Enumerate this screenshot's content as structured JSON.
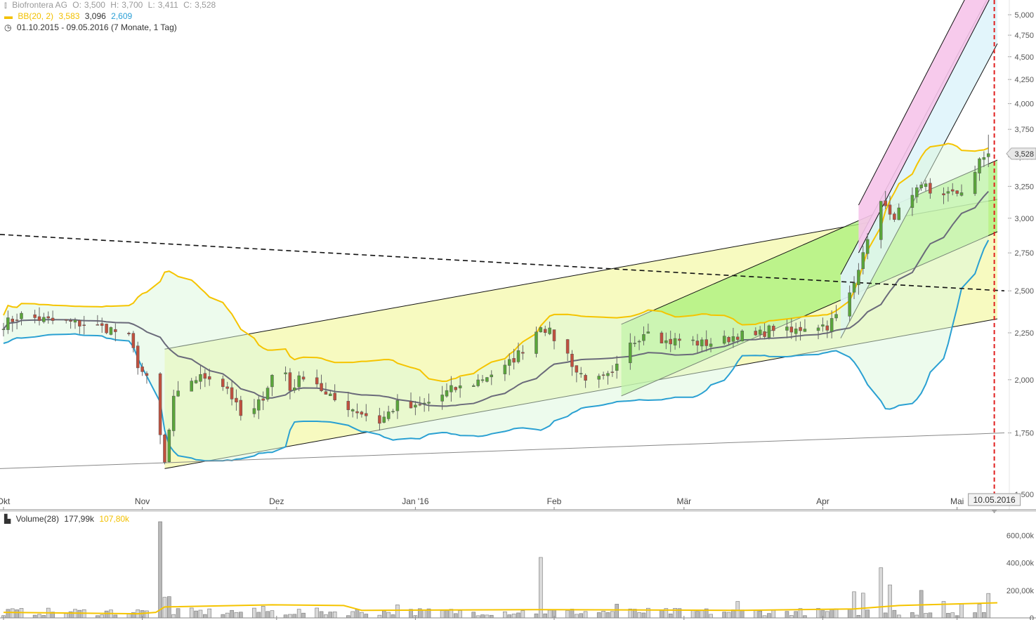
{
  "header": {
    "instrument": "Biofrontera AG",
    "ohlc": {
      "o_label": "O:",
      "o": "3,500",
      "h_label": "H:",
      "h": "3,700",
      "l_label": "L:",
      "l": "3,411",
      "c_label": "C:",
      "c": "3,528"
    },
    "bb_label": "BB(20, 2)",
    "bb_upper": "3,583",
    "bb_mid": "3,096",
    "bb_lower": "2,609",
    "range": "01.10.2015 - 09.05.2016 (7 Monate, 1 Tag)"
  },
  "price_badge": "3,528",
  "date_badge": "10.05.2016",
  "volume_legend": {
    "label": "Volume(28)",
    "value": "177,99k",
    "avg": "107,80k"
  },
  "colors": {
    "up": "#5aa63a",
    "down": "#c0503e",
    "bb_upper": "#f5c400",
    "bb_lower": "#2aa0d2",
    "bb_mid": "#6a6a7a",
    "cursor": "#e02020",
    "vol_avg": "#f5c400"
  },
  "chart_data": {
    "type": "candlestick",
    "title": "Biofrontera AG",
    "y_ticks": [
      "5,000",
      "4,750",
      "4,500",
      "4,250",
      "4,000",
      "3,750",
      "3,500",
      "3,250",
      "3,000",
      "2,750",
      "2,500",
      "2,250",
      "2,000",
      "1,750",
      "1,500"
    ],
    "y_tick_values": [
      5.0,
      4.75,
      4.5,
      4.25,
      4.0,
      3.75,
      3.5,
      3.25,
      3.0,
      2.75,
      2.5,
      2.25,
      2.0,
      1.75,
      1.5
    ],
    "y_scale": "log",
    "ylim": [
      1.5,
      5.0
    ],
    "x_labels": [
      "Okt",
      "Nov",
      "Dez",
      "Jan '16",
      "Feb",
      "Mär",
      "Apr",
      "Mai"
    ],
    "x_label_days": [
      0,
      31,
      61,
      92,
      123,
      152,
      183,
      213
    ],
    "xlim_days": [
      0,
      222
    ],
    "anchors_day_close": [
      [
        0,
        2.3
      ],
      [
        4,
        2.35
      ],
      [
        10,
        2.32
      ],
      [
        18,
        2.3
      ],
      [
        24,
        2.27
      ],
      [
        28,
        2.22
      ],
      [
        30,
        2.08
      ],
      [
        33,
        1.96
      ],
      [
        36,
        1.62
      ],
      [
        38,
        1.9
      ],
      [
        42,
        2.0
      ],
      [
        46,
        2.02
      ],
      [
        50,
        1.96
      ],
      [
        54,
        1.78
      ],
      [
        58,
        1.92
      ],
      [
        62,
        2.12
      ],
      [
        64,
        1.95
      ],
      [
        68,
        2.05
      ],
      [
        72,
        1.92
      ],
      [
        78,
        1.86
      ],
      [
        84,
        1.8
      ],
      [
        88,
        1.88
      ],
      [
        92,
        1.86
      ],
      [
        96,
        1.9
      ],
      [
        100,
        1.95
      ],
      [
        104,
        1.97
      ],
      [
        108,
        2.02
      ],
      [
        112,
        2.06
      ],
      [
        116,
        2.16
      ],
      [
        118,
        2.22
      ],
      [
        120,
        2.3
      ],
      [
        122,
        2.25
      ],
      [
        126,
        2.13
      ],
      [
        128,
        2.04
      ],
      [
        132,
        1.99
      ],
      [
        136,
        2.02
      ],
      [
        140,
        2.18
      ],
      [
        144,
        2.28
      ],
      [
        148,
        2.2
      ],
      [
        152,
        2.21
      ],
      [
        156,
        2.19
      ],
      [
        160,
        2.2
      ],
      [
        164,
        2.24
      ],
      [
        168,
        2.23
      ],
      [
        172,
        2.28
      ],
      [
        176,
        2.25
      ],
      [
        180,
        2.3
      ],
      [
        184,
        2.29
      ],
      [
        188,
        2.4
      ],
      [
        190,
        2.55
      ],
      [
        192,
        2.78
      ],
      [
        194,
        2.85
      ],
      [
        196,
        3.16
      ],
      [
        198,
        3.0
      ],
      [
        200,
        3.05
      ],
      [
        202,
        3.1
      ],
      [
        204,
        3.2
      ],
      [
        206,
        3.25
      ],
      [
        208,
        3.15
      ],
      [
        210,
        3.2
      ],
      [
        212,
        3.18
      ],
      [
        214,
        3.22
      ],
      [
        216,
        3.3
      ],
      [
        218,
        3.45
      ],
      [
        220,
        3.528
      ]
    ],
    "last": {
      "open": 3.5,
      "high": 3.7,
      "low": 3.411,
      "close": 3.528
    },
    "bollinger": {
      "period": 20,
      "stddev": 2,
      "upper": 3.583,
      "mid": 3.096,
      "lower": 2.609
    },
    "annotations": [
      {
        "type": "resistance-dashed",
        "from": [
          0,
          2.88
        ],
        "to": [
          222,
          2.5
        ]
      },
      {
        "type": "support-thin",
        "from": [
          0,
          1.6
        ],
        "to": [
          222,
          1.75
        ]
      },
      {
        "type": "channel-yellow",
        "base_from": [
          36,
          1.6
        ],
        "base_to": [
          222,
          2.33
        ],
        "width": 0.3
      },
      {
        "type": "channel-green",
        "base_from": [
          138,
          1.92
        ],
        "base_to": [
          222,
          2.9
        ],
        "width": 0.18
      },
      {
        "type": "channel-cyan",
        "base_from": [
          187,
          2.22
        ],
        "base_to": [
          222,
          4.65
        ],
        "width": 0.16
      },
      {
        "type": "channel-pink",
        "base_from": [
          191,
          2.75
        ],
        "base_to": [
          222,
          5.4
        ],
        "width": 0.12
      }
    ],
    "volume": {
      "y_ticks": [
        "600,00k",
        "400,00k",
        "200,00k",
        "0"
      ],
      "y_tick_values": [
        600,
        400,
        200,
        0
      ],
      "ylim": [
        0,
        700
      ],
      "spikes_day_k": [
        [
          34,
          590
        ],
        [
          35,
          700
        ],
        [
          36,
          150
        ],
        [
          37,
          155
        ],
        [
          47,
          120
        ],
        [
          55,
          90
        ],
        [
          58,
          85
        ],
        [
          62,
          180
        ],
        [
          88,
          95
        ],
        [
          120,
          440
        ],
        [
          118,
          110
        ],
        [
          131,
          90
        ],
        [
          137,
          100
        ],
        [
          152,
          75
        ],
        [
          164,
          120
        ],
        [
          173,
          115
        ],
        [
          190,
          190
        ],
        [
          192,
          180
        ],
        [
          196,
          365
        ],
        [
          198,
          240
        ],
        [
          205,
          200
        ],
        [
          208,
          150
        ],
        [
          210,
          120
        ],
        [
          214,
          105
        ],
        [
          218,
          100
        ],
        [
          220,
          178
        ]
      ],
      "base_k": 40,
      "avg_k": [
        [
          0,
          40
        ],
        [
          30,
          30
        ],
        [
          34,
          40
        ],
        [
          36,
          80
        ],
        [
          60,
          95
        ],
        [
          76,
          90
        ],
        [
          80,
          55
        ],
        [
          120,
          60
        ],
        [
          165,
          55
        ],
        [
          190,
          65
        ],
        [
          200,
          90
        ],
        [
          222,
          110
        ]
      ]
    }
  }
}
